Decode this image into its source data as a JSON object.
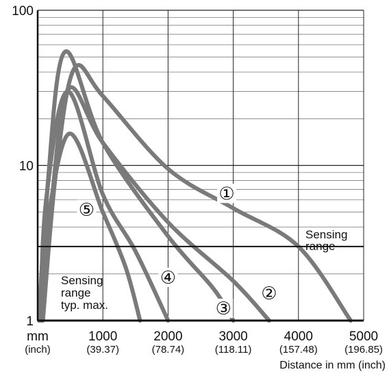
{
  "chart_data": {
    "type": "line",
    "x_axis": {
      "unit_label": "mm",
      "unit_label_inch": "(inch)",
      "title": "Distance in mm (inch)",
      "range": [
        0,
        5000
      ],
      "ticks": [
        {
          "mm": "1000",
          "inch": "(39.37)",
          "value": 1000
        },
        {
          "mm": "2000",
          "inch": "(78.74)",
          "value": 2000
        },
        {
          "mm": "3000",
          "inch": "(118.11)",
          "value": 3000
        },
        {
          "mm": "4000",
          "inch": "(157.48)",
          "value": 4000
        },
        {
          "mm": "5000",
          "inch": "(196.85)",
          "value": 5000
        }
      ]
    },
    "y_axis": {
      "scale": "log",
      "range": [
        1,
        100
      ],
      "ticks": [
        {
          "label": "1",
          "value": 1
        },
        {
          "label": "10",
          "value": 10
        },
        {
          "label": "100",
          "value": 100
        }
      ]
    },
    "grid": true,
    "threshold": {
      "value": 3,
      "label_line1": "Sensing",
      "label_line2": "range"
    },
    "annotation": {
      "line1": "Sensing",
      "line2": "range",
      "line3": "typ. max."
    },
    "series": [
      {
        "name": "①",
        "x": [
          80,
          280,
          560,
          1000,
          2000,
          3000,
          4000,
          4800
        ],
        "y": [
          1,
          9,
          42,
          28,
          9.5,
          5.3,
          3,
          1
        ]
      },
      {
        "name": "②",
        "x": [
          70,
          200,
          470,
          1000,
          2000,
          3000,
          3550
        ],
        "y": [
          1,
          5,
          31,
          14,
          4.3,
          1.8,
          1
        ]
      },
      {
        "name": "③",
        "x": [
          60,
          160,
          420,
          1000,
          2000,
          2700,
          3000
        ],
        "y": [
          1,
          8,
          54,
          14,
          3.5,
          1.6,
          1
        ]
      },
      {
        "name": "④",
        "x": [
          40,
          130,
          460,
          1000,
          1500,
          2000
        ],
        "y": [
          1,
          6,
          30,
          6.5,
          2.8,
          1
        ]
      },
      {
        "name": "⑤",
        "x": [
          20,
          120,
          480,
          1000,
          1350,
          1570
        ],
        "y": [
          1,
          3.5,
          16,
          5,
          2.2,
          1
        ]
      }
    ],
    "series_label_positions": [
      {
        "label": "①",
        "x": 2900,
        "y": 6.6
      },
      {
        "label": "②",
        "x": 3550,
        "y": 1.5
      },
      {
        "label": "③",
        "x": 2850,
        "y": 1.2
      },
      {
        "label": "④",
        "x": 2000,
        "y": 1.9
      },
      {
        "label": "⑤",
        "x": 750,
        "y": 5.2
      }
    ],
    "colors": {
      "curve": "#7a7a7a",
      "grid_major": "#222222",
      "grid_minor": "#7a7a7a",
      "threshold": "#111111"
    }
  }
}
